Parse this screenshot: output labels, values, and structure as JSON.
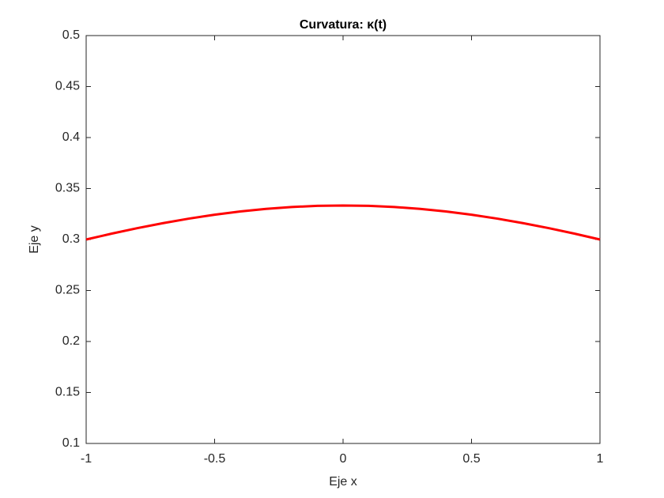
{
  "chart_data": {
    "type": "line",
    "title": "Curvatura: κ(t)",
    "xlabel": "Eje x",
    "ylabel": "Eje y",
    "x": [
      -1,
      -0.9,
      -0.8,
      -0.7,
      -0.6,
      -0.5,
      -0.4,
      -0.3,
      -0.2,
      -0.1,
      0,
      0.1,
      0.2,
      0.3,
      0.4,
      0.5,
      0.6,
      0.7,
      0.8,
      0.9,
      1
    ],
    "series": [
      {
        "color": "#ff0000",
        "values": [
          0.3,
          0.3058,
          0.3112,
          0.3161,
          0.3205,
          0.3243,
          0.3275,
          0.33,
          0.3319,
          0.333,
          0.3333,
          0.333,
          0.3319,
          0.33,
          0.3275,
          0.3243,
          0.3205,
          0.3161,
          0.3112,
          0.3058,
          0.3
        ]
      }
    ],
    "xlim": [
      -1,
      1
    ],
    "xticks": [
      -1,
      -0.5,
      0,
      0.5,
      1
    ],
    "ylim": [
      0.1,
      0.5
    ],
    "yticks": [
      0.1,
      0.15,
      0.2,
      0.25,
      0.3,
      0.35,
      0.4,
      0.45,
      0.5
    ],
    "grid": false
  }
}
